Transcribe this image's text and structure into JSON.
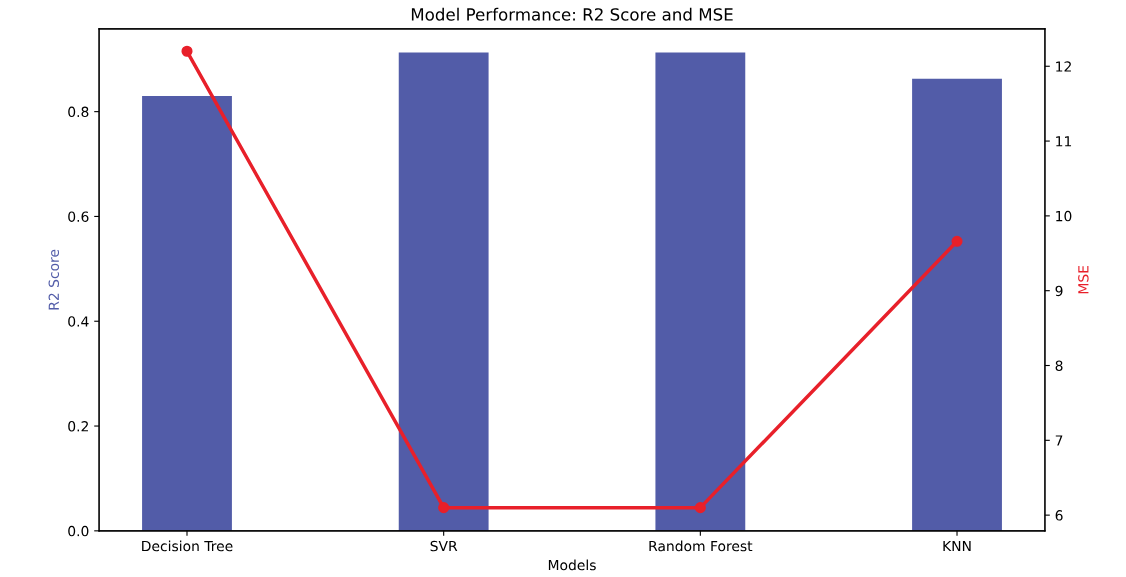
{
  "chart_data": {
    "type": "bar",
    "title": "Model Performance: R2 Score and MSE",
    "xlabel": "Models",
    "ylabel": "R2 Score",
    "y2label": "MSE",
    "categories": [
      "Decision Tree",
      "SVR",
      "Random Forest",
      "KNN"
    ],
    "series": [
      {
        "color": "#525ca8",
        "values": [
          0.83,
          0.913,
          0.913,
          0.863
        ]
      },
      {
        "type": "line",
        "axis": "y2",
        "color": "#e8202a",
        "values": [
          12.2,
          6.1,
          6.1,
          9.66
        ]
      }
    ],
    "ylim": [
      0,
      0.958
    ],
    "yticks": [
      {
        "value": 0,
        "label": "0.0"
      },
      0.2,
      0.4,
      0.6,
      0.8
    ],
    "y2lim": [
      5.79,
      12.5
    ],
    "y2ticks": [
      6,
      7,
      8,
      9,
      10,
      11,
      12
    ],
    "marker": "circle",
    "line_style": "solid",
    "grid": false,
    "legend": false
  }
}
